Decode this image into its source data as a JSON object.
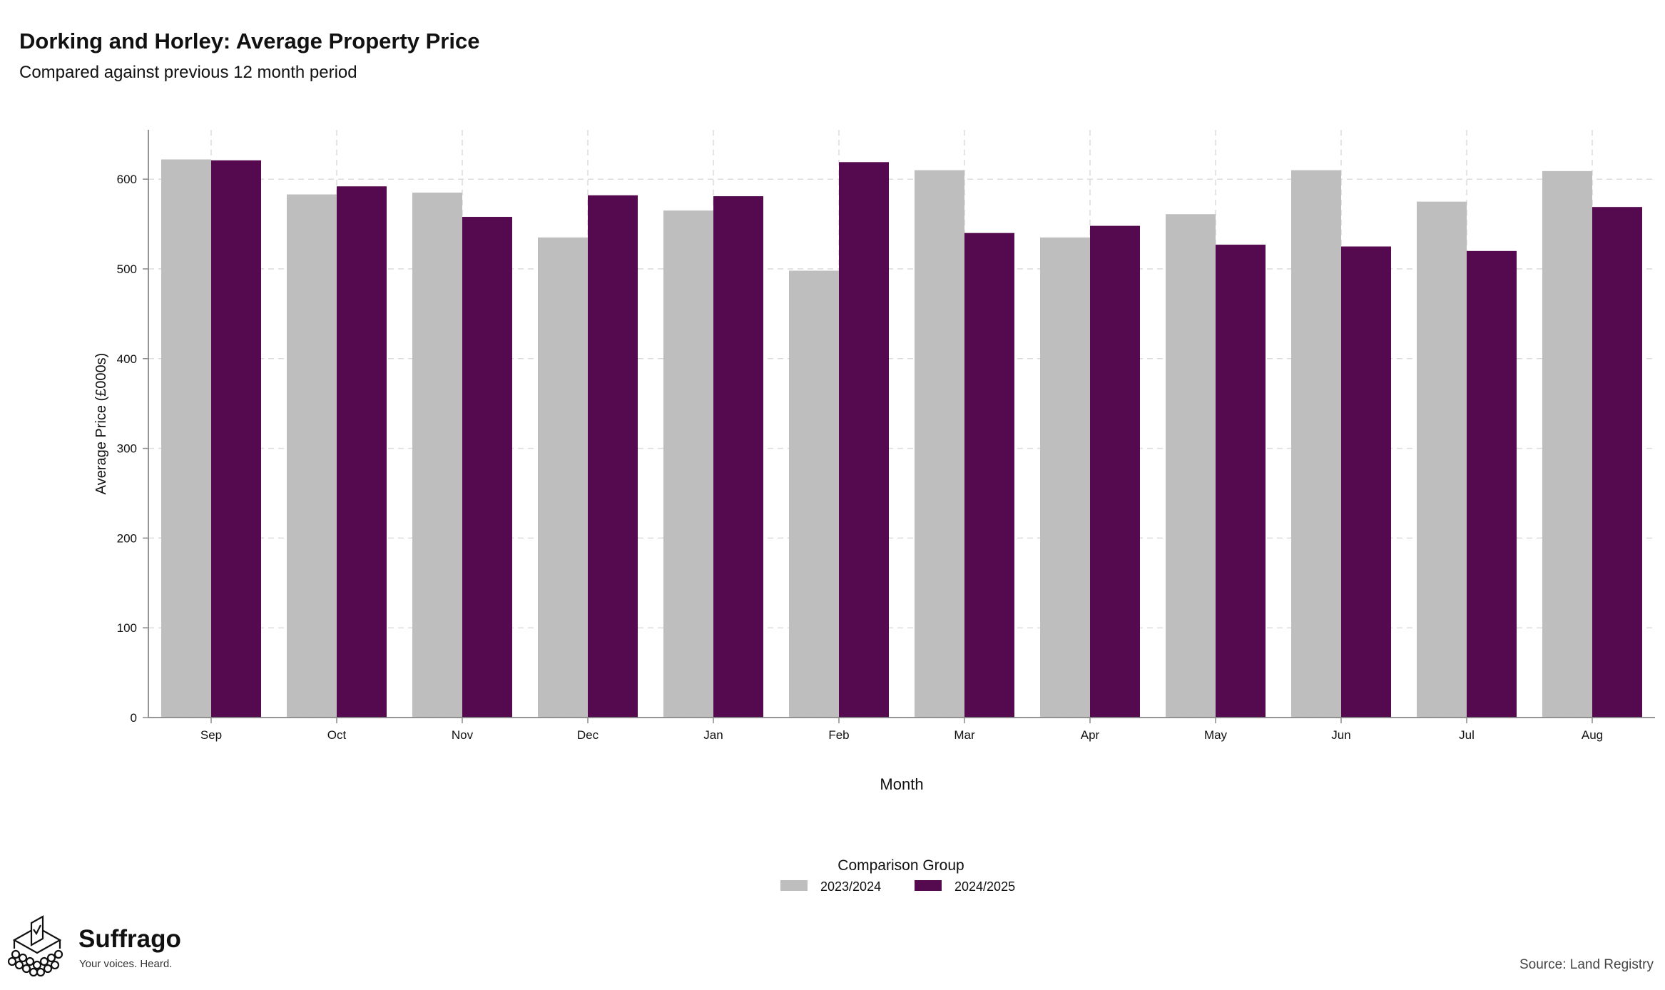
{
  "header": {
    "title": "Dorking and Horley: Average Property Price",
    "subtitle": "Compared against previous 12 month period"
  },
  "chart_data": {
    "type": "bar",
    "title": "Dorking and Horley: Average Property Price",
    "subtitle": "Compared against previous 12 month period",
    "xlabel": "Month",
    "ylabel": "Average Price (£000s)",
    "categories": [
      "Sep",
      "Oct",
      "Nov",
      "Dec",
      "Jan",
      "Feb",
      "Mar",
      "Apr",
      "May",
      "Jun",
      "Jul",
      "Aug"
    ],
    "ylim": [
      0,
      655
    ],
    "yticks": [
      0,
      100,
      200,
      300,
      400,
      500,
      600
    ],
    "grid": true,
    "legend": {
      "title": "Comparison Group",
      "placement": "bottom"
    },
    "series": [
      {
        "name": "2023/2024",
        "color": "#bebebe",
        "values": [
          622,
          583,
          585,
          535,
          565,
          498,
          610,
          535,
          561,
          610,
          575,
          609
        ]
      },
      {
        "name": "2024/2025",
        "color": "#550a50",
        "values": [
          621,
          592,
          558,
          582,
          581,
          619,
          540,
          548,
          527,
          525,
          520,
          569
        ]
      }
    ]
  },
  "branding": {
    "name": "Suffrago",
    "tagline": "Your voices. Heard.",
    "icon": "ballot-box-icon"
  },
  "footer": {
    "source": "Source: Land Registry"
  }
}
